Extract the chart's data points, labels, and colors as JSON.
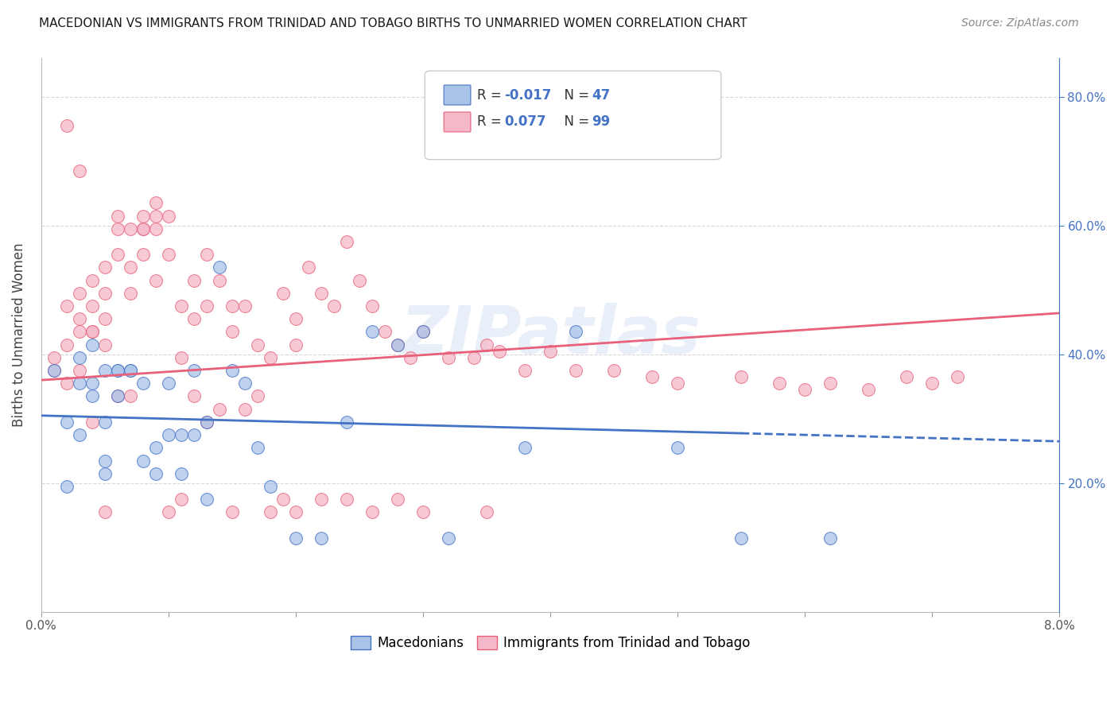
{
  "title": "MACEDONIAN VS IMMIGRANTS FROM TRINIDAD AND TOBAGO BIRTHS TO UNMARRIED WOMEN CORRELATION CHART",
  "source": "Source: ZipAtlas.com",
  "ylabel": "Births to Unmarried Women",
  "watermark": "ZIPatlas",
  "legend": {
    "series1_label": "Macedonians",
    "series1_R": "-0.017",
    "series1_N": "47",
    "series1_color": "#aac4e8",
    "series2_label": "Immigrants from Trinidad and Tobago",
    "series2_R": "0.077",
    "series2_N": "99",
    "series2_color": "#f4b8c8"
  },
  "blue_line_color": "#4472c4",
  "pink_line_color": "#e8607a",
  "grid_color": "#d8d8d8",
  "right_axis_color": "#4472c4",
  "background_color": "#ffffff",
  "xlim": [
    0.0,
    0.08
  ],
  "ylim": [
    0.0,
    0.86
  ],
  "right_yticks": [
    0.2,
    0.4,
    0.6,
    0.8
  ],
  "right_yticklabels": [
    "20.0%",
    "40.0%",
    "60.0%",
    "80.0%"
  ],
  "macedonian_x": [
    0.001,
    0.002,
    0.002,
    0.003,
    0.003,
    0.003,
    0.004,
    0.004,
    0.004,
    0.005,
    0.005,
    0.005,
    0.005,
    0.006,
    0.006,
    0.006,
    0.007,
    0.007,
    0.008,
    0.008,
    0.009,
    0.009,
    0.01,
    0.01,
    0.011,
    0.011,
    0.012,
    0.012,
    0.013,
    0.013,
    0.014,
    0.015,
    0.016,
    0.017,
    0.018,
    0.02,
    0.022,
    0.024,
    0.026,
    0.028,
    0.03,
    0.032,
    0.038,
    0.042,
    0.05,
    0.055,
    0.062
  ],
  "macedonian_y": [
    0.375,
    0.195,
    0.295,
    0.355,
    0.275,
    0.395,
    0.335,
    0.415,
    0.355,
    0.215,
    0.235,
    0.295,
    0.375,
    0.375,
    0.335,
    0.375,
    0.375,
    0.375,
    0.235,
    0.355,
    0.255,
    0.215,
    0.275,
    0.355,
    0.215,
    0.275,
    0.375,
    0.275,
    0.295,
    0.175,
    0.535,
    0.375,
    0.355,
    0.255,
    0.195,
    0.115,
    0.115,
    0.295,
    0.435,
    0.415,
    0.435,
    0.115,
    0.255,
    0.435,
    0.255,
    0.115,
    0.115
  ],
  "tt_x": [
    0.001,
    0.001,
    0.002,
    0.002,
    0.002,
    0.003,
    0.003,
    0.003,
    0.003,
    0.004,
    0.004,
    0.004,
    0.004,
    0.005,
    0.005,
    0.005,
    0.005,
    0.006,
    0.006,
    0.006,
    0.007,
    0.007,
    0.007,
    0.008,
    0.008,
    0.008,
    0.009,
    0.009,
    0.009,
    0.01,
    0.01,
    0.011,
    0.011,
    0.012,
    0.012,
    0.013,
    0.013,
    0.014,
    0.015,
    0.015,
    0.016,
    0.017,
    0.018,
    0.019,
    0.02,
    0.02,
    0.021,
    0.022,
    0.023,
    0.024,
    0.025,
    0.026,
    0.027,
    0.028,
    0.029,
    0.03,
    0.032,
    0.034,
    0.035,
    0.036,
    0.038,
    0.04,
    0.042,
    0.045,
    0.048,
    0.05,
    0.055,
    0.058,
    0.06,
    0.062,
    0.065,
    0.068,
    0.07,
    0.072,
    0.002,
    0.003,
    0.004,
    0.005,
    0.006,
    0.007,
    0.008,
    0.009,
    0.01,
    0.011,
    0.012,
    0.013,
    0.014,
    0.015,
    0.016,
    0.017,
    0.018,
    0.019,
    0.02,
    0.022,
    0.024,
    0.026,
    0.028,
    0.03,
    0.035
  ],
  "tt_y": [
    0.375,
    0.395,
    0.355,
    0.475,
    0.415,
    0.495,
    0.435,
    0.455,
    0.375,
    0.435,
    0.475,
    0.515,
    0.435,
    0.495,
    0.535,
    0.455,
    0.415,
    0.595,
    0.615,
    0.555,
    0.595,
    0.535,
    0.495,
    0.595,
    0.615,
    0.555,
    0.635,
    0.595,
    0.515,
    0.615,
    0.555,
    0.475,
    0.395,
    0.515,
    0.455,
    0.555,
    0.475,
    0.515,
    0.475,
    0.435,
    0.475,
    0.415,
    0.395,
    0.495,
    0.455,
    0.415,
    0.535,
    0.495,
    0.475,
    0.575,
    0.515,
    0.475,
    0.435,
    0.415,
    0.395,
    0.435,
    0.395,
    0.395,
    0.415,
    0.405,
    0.375,
    0.405,
    0.375,
    0.375,
    0.365,
    0.355,
    0.365,
    0.355,
    0.345,
    0.355,
    0.345,
    0.365,
    0.355,
    0.365,
    0.755,
    0.685,
    0.295,
    0.155,
    0.335,
    0.335,
    0.595,
    0.615,
    0.155,
    0.175,
    0.335,
    0.295,
    0.315,
    0.155,
    0.315,
    0.335,
    0.155,
    0.175,
    0.155,
    0.175,
    0.175,
    0.155,
    0.175,
    0.155,
    0.155
  ]
}
